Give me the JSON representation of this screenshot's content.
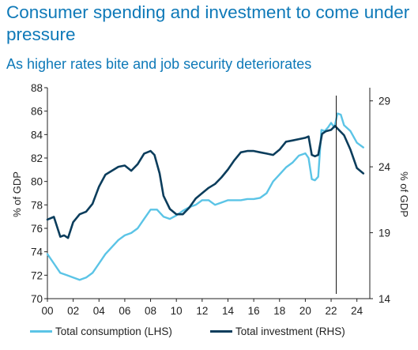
{
  "title": "Consumer spending and investment to come under pressure",
  "subtitle": "As higher rates bite and job security deteriorates",
  "chart_data": {
    "type": "line",
    "xlabel": "",
    "ylabel_left": "% of GDP",
    "ylabel_right": "% of GDP",
    "x_range": [
      2000,
      2025
    ],
    "x_ticks": [
      "00",
      "02",
      "04",
      "06",
      "08",
      "10",
      "12",
      "14",
      "16",
      "18",
      "20",
      "22",
      "24"
    ],
    "ylim_left": [
      70,
      88
    ],
    "yticks_left": [
      70,
      72,
      74,
      76,
      78,
      80,
      82,
      84,
      86,
      88
    ],
    "ylim_right": [
      14,
      30
    ],
    "yticks_right": [
      14,
      19,
      24,
      29
    ],
    "vertical_marker_x": 2022.4,
    "colors": {
      "consumption": "#5bc4e6",
      "investment": "#0b3d5c"
    },
    "series": [
      {
        "name": "Total consumption (LHS)",
        "axis": "left",
        "x": [
          2000.0,
          2000.5,
          2001.0,
          2001.5,
          2002.0,
          2002.5,
          2003.0,
          2003.5,
          2004.0,
          2004.5,
          2005.0,
          2005.5,
          2006.0,
          2006.5,
          2007.0,
          2007.5,
          2008.0,
          2008.5,
          2009.0,
          2009.5,
          2010.0,
          2010.5,
          2011.0,
          2011.5,
          2012.0,
          2012.5,
          2013.0,
          2013.5,
          2014.0,
          2014.5,
          2015.0,
          2015.5,
          2016.0,
          2016.5,
          2017.0,
          2017.5,
          2018.0,
          2018.5,
          2019.0,
          2019.5,
          2020.0,
          2020.25,
          2020.5,
          2020.75,
          2021.0,
          2021.25,
          2021.5,
          2021.75,
          2022.0,
          2022.25,
          2022.5,
          2022.75,
          2023.0,
          2023.5,
          2024.0,
          2024.5
        ],
        "values": [
          73.8,
          73.0,
          72.2,
          72.0,
          71.8,
          71.6,
          71.8,
          72.2,
          73.0,
          73.8,
          74.4,
          75.0,
          75.4,
          75.6,
          76.0,
          76.8,
          77.6,
          77.6,
          77.0,
          76.8,
          77.1,
          77.5,
          77.8,
          78.0,
          78.4,
          78.4,
          78.0,
          78.2,
          78.4,
          78.4,
          78.4,
          78.5,
          78.5,
          78.6,
          79.0,
          80.0,
          80.6,
          81.2,
          81.6,
          82.2,
          82.4,
          82.0,
          80.2,
          80.1,
          80.4,
          84.4,
          84.3,
          84.6,
          85.0,
          84.6,
          85.8,
          85.7,
          84.8,
          84.3,
          83.3,
          82.9
        ]
      },
      {
        "name": "Total investment (RHS)",
        "axis": "right",
        "x": [
          2000.0,
          2000.5,
          2001.0,
          2001.3,
          2001.6,
          2002.0,
          2002.5,
          2003.0,
          2003.5,
          2004.0,
          2004.5,
          2005.0,
          2005.5,
          2006.0,
          2006.5,
          2007.0,
          2007.5,
          2008.0,
          2008.3,
          2008.7,
          2009.0,
          2009.5,
          2010.0,
          2010.5,
          2011.0,
          2011.5,
          2012.0,
          2012.5,
          2013.0,
          2013.5,
          2014.0,
          2014.5,
          2015.0,
          2015.5,
          2016.0,
          2016.5,
          2017.0,
          2017.5,
          2018.0,
          2018.5,
          2019.0,
          2019.5,
          2020.0,
          2020.25,
          2020.5,
          2020.75,
          2021.0,
          2021.3,
          2021.6,
          2022.0,
          2022.3,
          2022.6,
          2023.0,
          2023.5,
          2024.0,
          2024.5
        ],
        "values": [
          20.0,
          20.2,
          18.7,
          18.8,
          18.6,
          19.8,
          20.4,
          20.6,
          21.2,
          22.5,
          23.4,
          23.7,
          24.0,
          24.1,
          23.7,
          24.2,
          25.0,
          25.2,
          24.9,
          23.5,
          21.8,
          20.8,
          20.4,
          20.4,
          20.9,
          21.6,
          22.0,
          22.4,
          22.7,
          23.2,
          23.8,
          24.5,
          25.1,
          25.2,
          25.2,
          25.1,
          25.0,
          24.9,
          25.3,
          25.9,
          26.0,
          26.1,
          26.2,
          26.3,
          24.9,
          24.8,
          24.9,
          26.5,
          26.7,
          26.8,
          27.1,
          26.8,
          26.4,
          25.3,
          23.9,
          23.5
        ]
      }
    ]
  }
}
